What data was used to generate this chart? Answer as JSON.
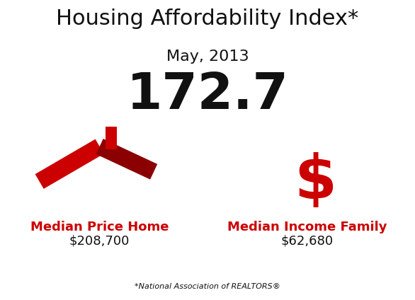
{
  "title_line1": "Housing Affordability Index",
  "title_asterisk": "*",
  "title_line2": "May, 2013",
  "index_value": "172.7",
  "left_label1": "Median Price Home",
  "left_label2": "$208,700",
  "right_label1": "Median Income Family",
  "right_label2": "$62,680",
  "footnote": "*National Association of REALTORS®",
  "bg_color": "#ffffff",
  "text_color": "#111111",
  "red_color": "#cc0000",
  "dark_red": "#8b0000",
  "title_fontsize": 22,
  "subtitle_fontsize": 16,
  "index_fontsize": 52,
  "label_fontsize": 13,
  "value_fontsize": 13,
  "footnote_fontsize": 8,
  "dollar_fontsize": 62
}
